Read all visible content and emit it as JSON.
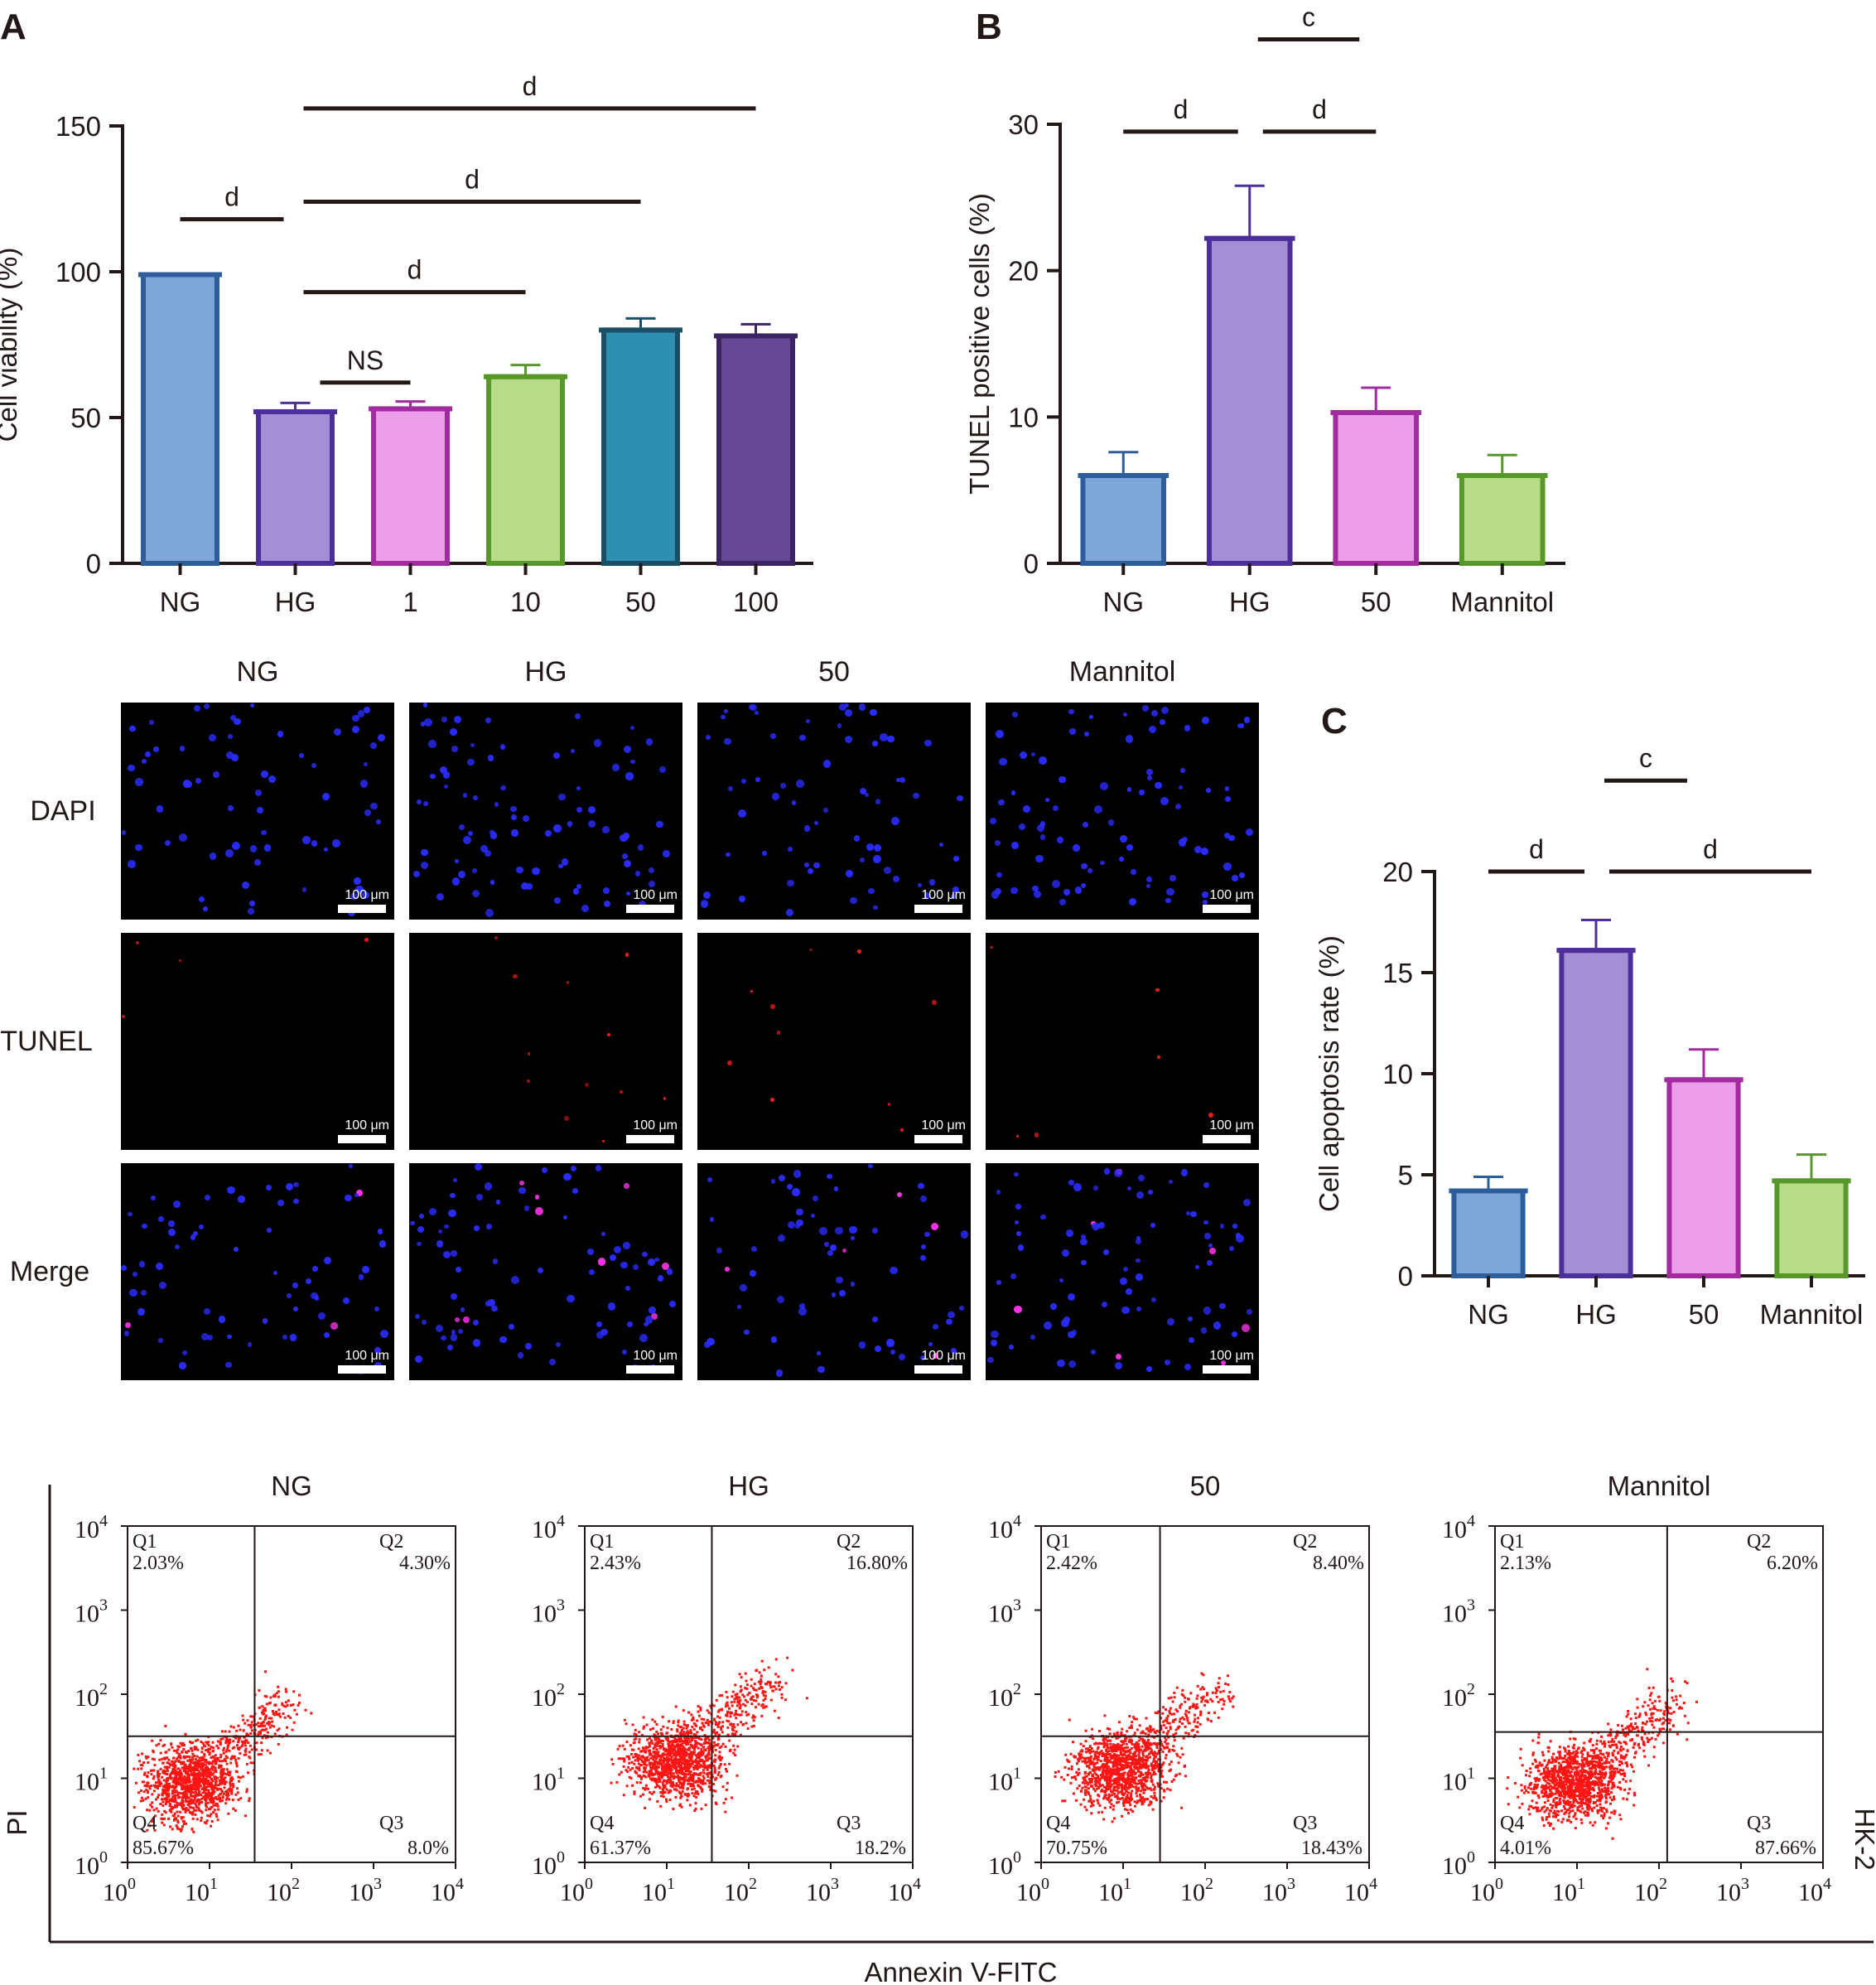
{
  "panel_letters": {
    "a": "A",
    "b": "B",
    "c": "C"
  },
  "chart_data": [
    {
      "id": "A",
      "type": "bar",
      "ylabel": "Cell viability (%)",
      "ylim": [
        0,
        150
      ],
      "yticks": [
        0,
        50,
        100,
        150
      ],
      "categories": [
        "NG",
        "HG",
        "1",
        "10",
        "50",
        "100"
      ],
      "values": [
        99,
        52,
        53,
        64,
        80,
        78
      ],
      "errors": [
        0,
        3,
        2.5,
        4,
        4,
        4
      ],
      "fills": [
        "#7ea6d8",
        "#a48fd4",
        "#ec9ee8",
        "#b9dc88",
        "#2f8fb0",
        "#654893"
      ],
      "strokes": [
        "#2f5d9b",
        "#4d2f9c",
        "#a12b9f",
        "#58982a",
        "#1b4f66",
        "#3b2461"
      ],
      "significance": [
        {
          "from": 0,
          "to": 1,
          "label": "d",
          "level": 118
        },
        {
          "from": 1,
          "to": 2,
          "label": "NS",
          "level": 62
        },
        {
          "from": 1,
          "to": 3,
          "label": "d",
          "level": 93
        },
        {
          "from": 1,
          "to": 4,
          "label": "d",
          "level": 124
        },
        {
          "from": 1,
          "to": 5,
          "label": "d",
          "level": 156
        }
      ]
    },
    {
      "id": "B",
      "type": "bar",
      "ylabel": "TUNEL positive cells (%)",
      "ylim": [
        0,
        30
      ],
      "yticks": [
        0,
        10,
        20,
        30
      ],
      "categories": [
        "NG",
        "HG",
        "50",
        "Mannitol"
      ],
      "values": [
        6,
        22.2,
        10.3,
        6
      ],
      "errors": [
        1.6,
        3.6,
        1.7,
        1.4
      ],
      "fills": [
        "#7ea6d8",
        "#a48fd4",
        "#ec9ee8",
        "#b9dc88"
      ],
      "strokes": [
        "#2f5d9b",
        "#4d2f9c",
        "#a12b9f",
        "#58982a"
      ],
      "significance": [
        {
          "from": 0,
          "to": 1,
          "label": "d",
          "level": 29.5
        },
        {
          "from": 1,
          "to": 2,
          "label": "d",
          "level": 29.5
        },
        {
          "from": 1,
          "to": 2,
          "label": "c",
          "level": 35.8
        }
      ]
    },
    {
      "id": "C",
      "type": "bar",
      "ylabel": "Cell apoptosis rate (%)",
      "ylim": [
        0,
        20
      ],
      "yticks": [
        0,
        5,
        10,
        15,
        20
      ],
      "categories": [
        "NG",
        "HG",
        "50",
        "Mannitol"
      ],
      "values": [
        4.2,
        16.1,
        9.7,
        4.7
      ],
      "errors": [
        0.7,
        1.5,
        1.5,
        1.3
      ],
      "fills": [
        "#7ea6d8",
        "#a48fd4",
        "#ec9ee8",
        "#b9dc88"
      ],
      "strokes": [
        "#2f5d9b",
        "#4d2f9c",
        "#a12b9f",
        "#58982a"
      ],
      "significance": [
        {
          "from": 0,
          "to": 1,
          "label": "d",
          "level": 20
        },
        {
          "from": 1,
          "to": 3,
          "label": "d",
          "level": 20
        },
        {
          "from": 1,
          "to": 2,
          "label": "c",
          "level": 24.5
        }
      ]
    },
    {
      "id": "flow",
      "type": "scatter",
      "xlabel": "Annexin V-FITC",
      "ylabel": "PI",
      "side_label": "HK-2",
      "axis_exponents": [
        "0",
        "1",
        "2",
        "3",
        "4"
      ],
      "axis_base": "10",
      "panels": [
        {
          "title": "NG",
          "gate_x": 1.55,
          "gate_y": 1.5,
          "cx": 0.75,
          "cy": 0.95,
          "q1": {
            "name": "Q1",
            "value": "2.03%"
          },
          "q2": {
            "name": "Q2",
            "value": "4.30%"
          },
          "q3": {
            "name": "Q3",
            "value": "8.0%"
          },
          "q4": {
            "name": "Q4",
            "value": "85.67%"
          }
        },
        {
          "title": "HG",
          "gate_x": 1.55,
          "gate_y": 1.5,
          "cx": 1.1,
          "cy": 1.2,
          "q1": {
            "name": "Q1",
            "value": "2.43%"
          },
          "q2": {
            "name": "Q2",
            "value": "16.80%"
          },
          "q3": {
            "name": "Q3",
            "value": "18.2%"
          },
          "q4": {
            "name": "Q4",
            "value": "61.37%"
          }
        },
        {
          "title": "50",
          "gate_x": 1.45,
          "gate_y": 1.5,
          "cx": 0.95,
          "cy": 1.1,
          "q1": {
            "name": "Q1",
            "value": "2.42%"
          },
          "q2": {
            "name": "Q2",
            "value": "8.40%"
          },
          "q3": {
            "name": "Q3",
            "value": "18.43%"
          },
          "q4": {
            "name": "Q4",
            "value": "70.75%"
          }
        },
        {
          "title": "Mannitol",
          "gate_x": 2.1,
          "gate_y": 1.55,
          "cx": 0.95,
          "cy": 0.95,
          "q1": {
            "name": "Q1",
            "value": "2.13%"
          },
          "q2": {
            "name": "Q2",
            "value": "6.20%"
          },
          "q3": {
            "name": "Q3",
            "value": "87.66%"
          },
          "q4": {
            "name": "Q4",
            "value": "4.01%"
          }
        }
      ]
    }
  ],
  "microscopy": {
    "columns": [
      "NG",
      "HG",
      "50",
      "Mannitol"
    ],
    "rows": [
      "DAPI",
      "TUNEL",
      "Merge"
    ],
    "scale_label": "100 μm",
    "dapi_color": "#2a2cff",
    "tunel_color": "#ff1a1a",
    "merge_color": "#ff33ee"
  }
}
